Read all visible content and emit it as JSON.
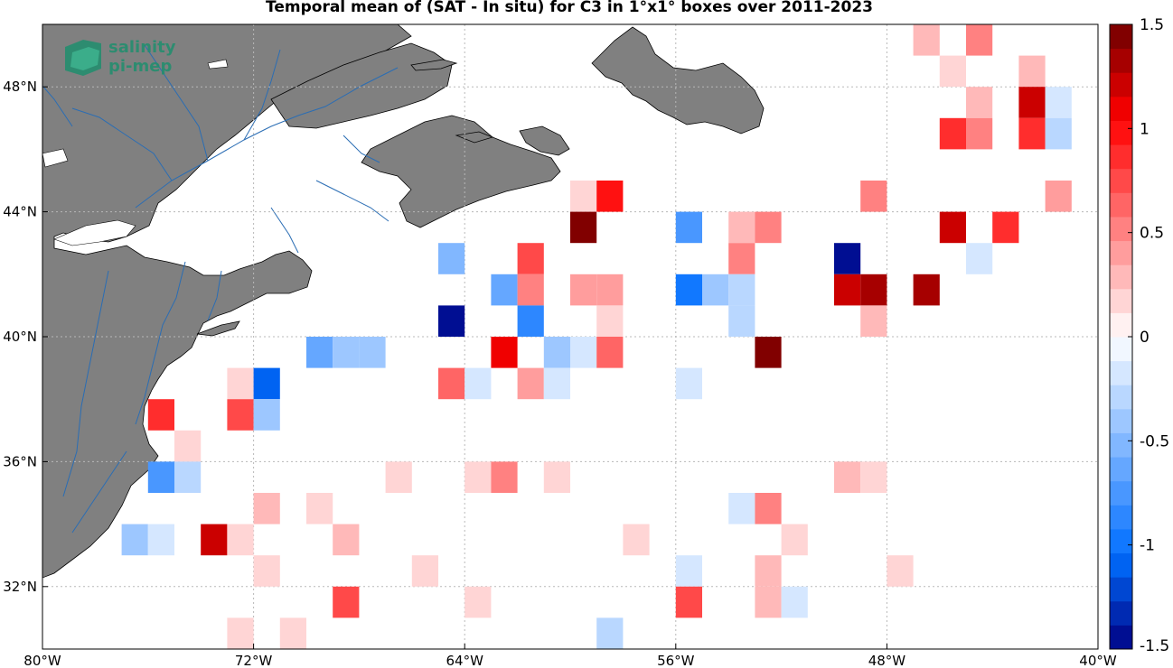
{
  "title": "Temporal mean of (SAT - In situ) for C3 in 1°x1° boxes over 2011-2023",
  "logo": {
    "text_line1": "salinity",
    "text_line2": "pi-mep"
  },
  "map": {
    "lon_range": [
      -80,
      -40
    ],
    "lat_range": [
      30,
      50
    ],
    "x_ticks": [
      {
        "value": -80,
        "label": "80°W"
      },
      {
        "value": -72,
        "label": "72°W"
      },
      {
        "value": -64,
        "label": "64°W"
      },
      {
        "value": -56,
        "label": "56°W"
      },
      {
        "value": -48,
        "label": "48°W"
      },
      {
        "value": -40,
        "label": "40°W"
      }
    ],
    "y_ticks": [
      {
        "value": 32,
        "label": "32°N"
      },
      {
        "value": 36,
        "label": "36°N"
      },
      {
        "value": 40,
        "label": "40°N"
      },
      {
        "value": 44,
        "label": "44°N"
      },
      {
        "value": 48,
        "label": "48°N"
      }
    ],
    "grid": true,
    "land_color": "#7f7f7f",
    "river_color": "#1f77b4"
  },
  "colorbar": {
    "range": [
      -1.5,
      1.5
    ],
    "levels": 26,
    "ticks": [
      {
        "value": 1.5,
        "label": "1.5"
      },
      {
        "value": 1,
        "label": "1"
      },
      {
        "value": 0.5,
        "label": "0.5"
      },
      {
        "value": 0,
        "label": "0"
      },
      {
        "value": -0.5,
        "label": "-0.5"
      },
      {
        "value": -1,
        "label": "-1"
      },
      {
        "value": -1.5,
        "label": "-1.5"
      }
    ],
    "colormap": "blue-white-red"
  },
  "chart_data": {
    "type": "heatmap",
    "title": "Temporal mean of (SAT - In situ) for C3 in 1°x1° boxes over 2011-2023",
    "xlabel": "",
    "ylabel": "",
    "cell_size_deg": 1,
    "cells": [
      {
        "lon": -46,
        "lat": 49,
        "v": 0.3
      },
      {
        "lon": -44,
        "lat": 49,
        "v": 0.5
      },
      {
        "lon": -45,
        "lat": 48,
        "v": 0.15
      },
      {
        "lon": -42,
        "lat": 48,
        "v": 0.3
      },
      {
        "lon": -44,
        "lat": 47,
        "v": 0.3
      },
      {
        "lon": -42,
        "lat": 47,
        "v": 1.2
      },
      {
        "lon": -41,
        "lat": 47,
        "v": -0.15
      },
      {
        "lon": -45,
        "lat": 46,
        "v": 0.9
      },
      {
        "lon": -44,
        "lat": 46,
        "v": 0.5
      },
      {
        "lon": -42,
        "lat": 46,
        "v": 0.9
      },
      {
        "lon": -41,
        "lat": 46,
        "v": -0.3
      },
      {
        "lon": -59,
        "lat": 44,
        "v": 0.15
      },
      {
        "lon": -58,
        "lat": 44,
        "v": 1.0
      },
      {
        "lon": -48,
        "lat": 44,
        "v": 0.5
      },
      {
        "lon": -41,
        "lat": 44,
        "v": 0.4
      },
      {
        "lon": -59,
        "lat": 43,
        "v": 1.4
      },
      {
        "lon": -55,
        "lat": 43,
        "v": -0.7
      },
      {
        "lon": -53,
        "lat": 43,
        "v": 0.3
      },
      {
        "lon": -52,
        "lat": 43,
        "v": 0.5
      },
      {
        "lon": -45,
        "lat": 43,
        "v": 1.2
      },
      {
        "lon": -43,
        "lat": 43,
        "v": 0.9
      },
      {
        "lon": -64,
        "lat": 42,
        "v": -0.5
      },
      {
        "lon": -61,
        "lat": 42,
        "v": 0.8
      },
      {
        "lon": -53,
        "lat": 42,
        "v": 0.5
      },
      {
        "lon": -49,
        "lat": 42,
        "v": -1.5
      },
      {
        "lon": -44,
        "lat": 42,
        "v": -0.15
      },
      {
        "lon": -62,
        "lat": 41,
        "v": -0.6
      },
      {
        "lon": -61,
        "lat": 41,
        "v": 0.5
      },
      {
        "lon": -59,
        "lat": 41,
        "v": 0.35
      },
      {
        "lon": -58,
        "lat": 41,
        "v": 0.35
      },
      {
        "lon": -55,
        "lat": 41,
        "v": -1.0
      },
      {
        "lon": -54,
        "lat": 41,
        "v": -0.45
      },
      {
        "lon": -53,
        "lat": 41,
        "v": -0.25
      },
      {
        "lon": -49,
        "lat": 41,
        "v": 1.2
      },
      {
        "lon": -48,
        "lat": 41,
        "v": 1.35
      },
      {
        "lon": -46,
        "lat": 41,
        "v": 1.35
      },
      {
        "lon": -64,
        "lat": 40,
        "v": -1.5
      },
      {
        "lon": -61,
        "lat": 40,
        "v": -0.9
      },
      {
        "lon": -58,
        "lat": 40,
        "v": 0.15
      },
      {
        "lon": -53,
        "lat": 40,
        "v": -0.25
      },
      {
        "lon": -48,
        "lat": 40,
        "v": 0.3
      },
      {
        "lon": -69,
        "lat": 39,
        "v": -0.6
      },
      {
        "lon": -68,
        "lat": 39,
        "v": -0.45
      },
      {
        "lon": -67,
        "lat": 39,
        "v": -0.35
      },
      {
        "lon": -62,
        "lat": 39,
        "v": 1.1
      },
      {
        "lon": -60,
        "lat": 39,
        "v": -0.45
      },
      {
        "lon": -59,
        "lat": 39,
        "v": -0.15
      },
      {
        "lon": -58,
        "lat": 39,
        "v": 0.6
      },
      {
        "lon": -52,
        "lat": 39,
        "v": 1.4
      },
      {
        "lon": -72,
        "lat": 38,
        "v": 0.15
      },
      {
        "lon": -71,
        "lat": 38,
        "v": -1.1
      },
      {
        "lon": -64,
        "lat": 38,
        "v": 0.6
      },
      {
        "lon": -63,
        "lat": 38,
        "v": -0.15
      },
      {
        "lon": -61,
        "lat": 38,
        "v": 0.4
      },
      {
        "lon": -60,
        "lat": 38,
        "v": -0.15
      },
      {
        "lon": -55,
        "lat": 38,
        "v": -0.15
      },
      {
        "lon": -75,
        "lat": 37,
        "v": 0.9
      },
      {
        "lon": -72,
        "lat": 37,
        "v": 0.7
      },
      {
        "lon": -71,
        "lat": 37,
        "v": -0.4
      },
      {
        "lon": -74,
        "lat": 36,
        "v": 0.15
      },
      {
        "lon": -75,
        "lat": 35,
        "v": -0.7
      },
      {
        "lon": -74,
        "lat": 35,
        "v": -0.25
      },
      {
        "lon": -66,
        "lat": 35,
        "v": 0.15
      },
      {
        "lon": -63,
        "lat": 35,
        "v": 0.15
      },
      {
        "lon": -62,
        "lat": 35,
        "v": 0.5
      },
      {
        "lon": -60,
        "lat": 35,
        "v": 0.15
      },
      {
        "lon": -49,
        "lat": 35,
        "v": 0.25
      },
      {
        "lon": -48,
        "lat": 35,
        "v": 0.15
      },
      {
        "lon": -71,
        "lat": 34,
        "v": 0.3
      },
      {
        "lon": -69,
        "lat": 34,
        "v": 0.15
      },
      {
        "lon": -53,
        "lat": 34,
        "v": -0.15
      },
      {
        "lon": -52,
        "lat": 34,
        "v": 0.5
      },
      {
        "lon": -76,
        "lat": 33,
        "v": -0.4
      },
      {
        "lon": -75,
        "lat": 33,
        "v": -0.15
      },
      {
        "lon": -73,
        "lat": 33,
        "v": 1.25
      },
      {
        "lon": -72,
        "lat": 33,
        "v": 0.15
      },
      {
        "lon": -68,
        "lat": 33,
        "v": 0.3
      },
      {
        "lon": -57,
        "lat": 33,
        "v": 0.15
      },
      {
        "lon": -51,
        "lat": 33,
        "v": 0.15
      },
      {
        "lon": -71,
        "lat": 32,
        "v": 0.15
      },
      {
        "lon": -65,
        "lat": 32,
        "v": 0.2
      },
      {
        "lon": -55,
        "lat": 32,
        "v": -0.15
      },
      {
        "lon": -52,
        "lat": 32,
        "v": 0.25
      },
      {
        "lon": -47,
        "lat": 32,
        "v": 0.15
      },
      {
        "lon": -68,
        "lat": 31,
        "v": 0.75
      },
      {
        "lon": -63,
        "lat": 31,
        "v": 0.15
      },
      {
        "lon": -55,
        "lat": 31,
        "v": 0.7
      },
      {
        "lon": -52,
        "lat": 31,
        "v": 0.25
      },
      {
        "lon": -51,
        "lat": 31,
        "v": -0.15
      },
      {
        "lon": -72,
        "lat": 30,
        "v": 0.15
      },
      {
        "lon": -70,
        "lat": 30,
        "v": 0.15
      },
      {
        "lon": -58,
        "lat": 30,
        "v": -0.3
      }
    ]
  }
}
